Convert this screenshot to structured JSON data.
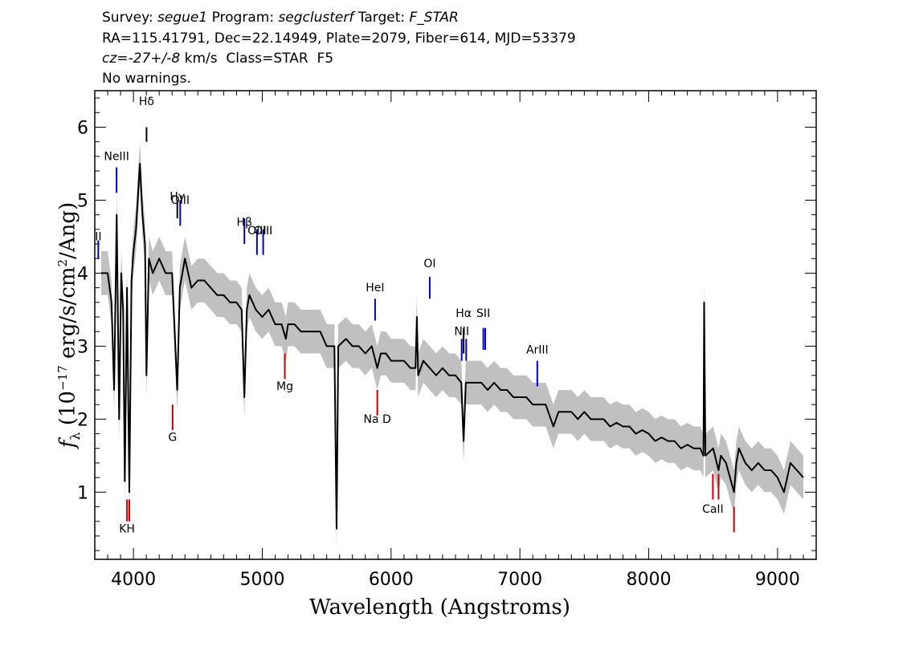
{
  "header": {
    "survey_label": "Survey: ",
    "survey_value": "segue1",
    "program_label": " Program: ",
    "program_value": "segclusterf",
    "target_label": " Target: ",
    "target_value": "F_STAR",
    "line2": "RA=115.41791, Dec=22.14949, Plate=2079, Fiber=614, MJD=53379",
    "cz_prefix": "cz",
    "cz_eq": "=",
    "cz_value": "-27+/-8",
    "cz_suffix": " km/s  Class=STAR  F5",
    "line4": "No warnings."
  },
  "chart_data": {
    "type": "line",
    "title": "",
    "xlabel": "Wavelength (Angstroms)",
    "ylabel_prefix": "f",
    "ylabel_sub": "λ",
    "ylabel_mid": " (10",
    "ylabel_exp": "−17",
    "ylabel_mid2": " erg/s/cm",
    "ylabel_exp2": "2",
    "ylabel_end": "/Ang)",
    "xlim": [
      3700,
      9300
    ],
    "ylim": [
      0.08,
      6.5
    ],
    "x_ticks": [
      4000,
      5000,
      6000,
      7000,
      8000,
      9000
    ],
    "y_ticks": [
      1,
      2,
      3,
      4,
      5,
      6
    ],
    "series": [
      {
        "role": "flux",
        "color": "#000000",
        "points": [
          [
            3750,
            4.0
          ],
          [
            3800,
            4.0
          ],
          [
            3830,
            3.6
          ],
          [
            3850,
            2.4
          ],
          [
            3870,
            4.8
          ],
          [
            3889,
            2.0
          ],
          [
            3905,
            4.0
          ],
          [
            3920,
            3.5
          ],
          [
            3933,
            1.15
          ],
          [
            3950,
            3.8
          ],
          [
            3968,
            1.0
          ],
          [
            3985,
            3.9
          ],
          [
            4000,
            4.3
          ],
          [
            4020,
            4.6
          ],
          [
            4050,
            5.5
          ],
          [
            4070,
            4.8
          ],
          [
            4090,
            4.4
          ],
          [
            4101,
            2.6
          ],
          [
            4120,
            4.2
          ],
          [
            4150,
            4.0
          ],
          [
            4200,
            4.2
          ],
          [
            4250,
            4.0
          ],
          [
            4300,
            4.0
          ],
          [
            4340,
            2.4
          ],
          [
            4360,
            3.8
          ],
          [
            4400,
            4.2
          ],
          [
            4450,
            3.8
          ],
          [
            4500,
            3.9
          ],
          [
            4550,
            3.9
          ],
          [
            4600,
            3.8
          ],
          [
            4650,
            3.7
          ],
          [
            4700,
            3.7
          ],
          [
            4750,
            3.6
          ],
          [
            4800,
            3.6
          ],
          [
            4840,
            3.5
          ],
          [
            4861,
            2.3
          ],
          [
            4880,
            3.5
          ],
          [
            4900,
            3.7
          ],
          [
            4950,
            3.5
          ],
          [
            5000,
            3.4
          ],
          [
            5050,
            3.5
          ],
          [
            5100,
            3.3
          ],
          [
            5150,
            3.3
          ],
          [
            5183,
            3.1
          ],
          [
            5200,
            3.3
          ],
          [
            5250,
            3.3
          ],
          [
            5300,
            3.2
          ],
          [
            5350,
            3.2
          ],
          [
            5400,
            3.2
          ],
          [
            5450,
            3.2
          ],
          [
            5500,
            3.0
          ],
          [
            5560,
            3.0
          ],
          [
            5577,
            0.5
          ],
          [
            5590,
            3.0
          ],
          [
            5650,
            3.1
          ],
          [
            5700,
            3.0
          ],
          [
            5750,
            3.0
          ],
          [
            5800,
            2.9
          ],
          [
            5850,
            3.0
          ],
          [
            5893,
            2.7
          ],
          [
            5920,
            2.9
          ],
          [
            5960,
            2.9
          ],
          [
            6000,
            2.8
          ],
          [
            6050,
            2.8
          ],
          [
            6100,
            2.8
          ],
          [
            6150,
            2.7
          ],
          [
            6190,
            2.7
          ],
          [
            6200,
            3.4
          ],
          [
            6210,
            2.6
          ],
          [
            6250,
            2.8
          ],
          [
            6300,
            2.7
          ],
          [
            6350,
            2.6
          ],
          [
            6400,
            2.7
          ],
          [
            6450,
            2.6
          ],
          [
            6500,
            2.6
          ],
          [
            6545,
            2.5
          ],
          [
            6563,
            1.7
          ],
          [
            6580,
            2.5
          ],
          [
            6620,
            2.5
          ],
          [
            6700,
            2.5
          ],
          [
            6750,
            2.4
          ],
          [
            6800,
            2.5
          ],
          [
            6850,
            2.4
          ],
          [
            6900,
            2.4
          ],
          [
            6950,
            2.3
          ],
          [
            7000,
            2.3
          ],
          [
            7050,
            2.3
          ],
          [
            7100,
            2.2
          ],
          [
            7150,
            2.2
          ],
          [
            7200,
            2.2
          ],
          [
            7260,
            1.9
          ],
          [
            7300,
            2.1
          ],
          [
            7350,
            2.1
          ],
          [
            7400,
            2.1
          ],
          [
            7450,
            2.0
          ],
          [
            7500,
            2.1
          ],
          [
            7550,
            2.0
          ],
          [
            7600,
            2.0
          ],
          [
            7650,
            2.0
          ],
          [
            7700,
            1.9
          ],
          [
            7750,
            1.95
          ],
          [
            7800,
            1.9
          ],
          [
            7850,
            1.9
          ],
          [
            7900,
            1.8
          ],
          [
            7950,
            1.85
          ],
          [
            8000,
            1.8
          ],
          [
            8050,
            1.7
          ],
          [
            8100,
            1.75
          ],
          [
            8150,
            1.7
          ],
          [
            8200,
            1.7
          ],
          [
            8250,
            1.6
          ],
          [
            8300,
            1.65
          ],
          [
            8350,
            1.6
          ],
          [
            8400,
            1.6
          ],
          [
            8425,
            1.5
          ],
          [
            8430,
            3.6
          ],
          [
            8440,
            1.5
          ],
          [
            8500,
            1.6
          ],
          [
            8542,
            1.3
          ],
          [
            8560,
            1.5
          ],
          [
            8600,
            1.4
          ],
          [
            8662,
            1.0
          ],
          [
            8680,
            1.4
          ],
          [
            8700,
            1.6
          ],
          [
            8750,
            1.4
          ],
          [
            8800,
            1.3
          ],
          [
            8850,
            1.4
          ],
          [
            8900,
            1.3
          ],
          [
            8950,
            1.3
          ],
          [
            9000,
            1.2
          ],
          [
            9050,
            1.0
          ],
          [
            9100,
            1.4
          ],
          [
            9150,
            1.3
          ],
          [
            9200,
            1.2
          ]
        ]
      }
    ],
    "line_markers": [
      {
        "label": "Hδ",
        "lambda": 4101.7,
        "kind": "balmer",
        "y_label": 6.3,
        "y_top": 6.0,
        "y_bottom": 5.8,
        "color": "#000000"
      },
      {
        "label": "NeIII",
        "lambda": 3869,
        "kind": "emission",
        "y_label": 5.55,
        "y_top": 5.45,
        "y_bottom": 5.1,
        "color": "#0000cc"
      },
      {
        "label": "Hγ",
        "lambda": 4340.5,
        "kind": "balmer",
        "y_label": 5.0,
        "y_top": 5.0,
        "y_bottom": 4.75,
        "color": "#000000"
      },
      {
        "label": "OIII",
        "lambda": 4363,
        "kind": "emission",
        "y_label": 4.95,
        "y_top": 5.0,
        "y_bottom": 4.65,
        "color": "#0000cc"
      },
      {
        "label": "Hβ",
        "lambda": 4861.3,
        "kind": "emission",
        "y_label": 4.65,
        "y_top": 4.75,
        "y_bottom": 4.4,
        "color": "#0000cc"
      },
      {
        "label": "OIII",
        "lambda": 4959,
        "kind": "emission",
        "y_label": 4.53,
        "y_top": 4.6,
        "y_bottom": 4.25,
        "color": "#0000cc"
      },
      {
        "label": "OIII",
        "lambda": 5007,
        "kind": "emission",
        "y_label": 4.53,
        "y_top": 4.6,
        "y_bottom": 4.25,
        "color": "#0000cc"
      },
      {
        "label": "II",
        "lambda": 3727,
        "kind": "emission",
        "y_label": 4.45,
        "y_top": 4.45,
        "y_bottom": 4.2,
        "color": "#0000cc"
      },
      {
        "label": "HeI",
        "lambda": 5876,
        "kind": "emission",
        "y_label": 3.75,
        "y_top": 3.65,
        "y_bottom": 3.35,
        "color": "#0000cc"
      },
      {
        "label": "OI",
        "lambda": 6300,
        "kind": "emission",
        "y_label": 4.08,
        "y_top": 3.95,
        "y_bottom": 3.65,
        "color": "#0000cc"
      },
      {
        "label": "NII",
        "lambda": 6548,
        "kind": "emission",
        "y_label": 3.15,
        "y_top": 3.1,
        "y_bottom": 2.8,
        "color": "#0000cc"
      },
      {
        "label": "Hα",
        "lambda": 6563,
        "kind": "balmer",
        "y_label": 3.4,
        "y_top": 3.25,
        "y_bottom": 2.9,
        "color": "#000000"
      },
      {
        "label": "Hα",
        "lambda": 6583,
        "kind": "emission",
        "y_label": 3.4,
        "y_top": 3.1,
        "y_bottom": 2.8,
        "color": "#0000cc",
        "show_label": false
      },
      {
        "label": "SII",
        "lambda": 6716,
        "kind": "emission",
        "y_label": 3.4,
        "y_top": 3.25,
        "y_bottom": 2.95,
        "color": "#0000cc"
      },
      {
        "label": "NII",
        "lambda": 6731,
        "kind": "emission",
        "y_label": 3.15,
        "y_top": 3.25,
        "y_bottom": 2.95,
        "color": "#0000cc",
        "show_label": false
      },
      {
        "label": "ArIII",
        "lambda": 7135,
        "kind": "emission",
        "y_label": 2.9,
        "y_top": 2.8,
        "y_bottom": 2.45,
        "color": "#0000cc"
      },
      {
        "label": "KH",
        "lambda": 3950,
        "kind": "absorption",
        "y_label": 0.45,
        "y_top": 0.9,
        "y_bottom": 0.6,
        "color": "#cc0000"
      },
      {
        "label": "",
        "lambda": 3968,
        "kind": "absorption",
        "y_label": 0.45,
        "y_top": 0.9,
        "y_bottom": 0.6,
        "color": "#cc0000"
      },
      {
        "label": "G",
        "lambda": 4304,
        "kind": "absorption",
        "y_label": 1.7,
        "y_top": 2.2,
        "y_bottom": 1.85,
        "color": "#cc0000"
      },
      {
        "label": "Mg",
        "lambda": 5175,
        "kind": "absorption",
        "y_label": 2.4,
        "y_top": 2.9,
        "y_bottom": 2.55,
        "color": "#cc0000"
      },
      {
        "label": "Na D",
        "lambda": 5893,
        "kind": "absorption",
        "y_label": 1.95,
        "y_top": 2.4,
        "y_bottom": 2.05,
        "color": "#cc0000"
      },
      {
        "label": "CaII",
        "lambda": 8498,
        "kind": "absorption",
        "y_label": 0.72,
        "y_top": 1.25,
        "y_bottom": 0.9,
        "color": "#cc0000"
      },
      {
        "label": "",
        "lambda": 8542,
        "kind": "absorption",
        "y_label": 0.72,
        "y_top": 1.25,
        "y_bottom": 0.9,
        "color": "#cc0000"
      },
      {
        "label": "",
        "lambda": 8662,
        "kind": "absorption",
        "y_label": 0.72,
        "y_top": 0.8,
        "y_bottom": 0.45,
        "color": "#cc0000"
      }
    ],
    "grid": false,
    "legend": "none",
    "colors": {
      "flux": "#000000",
      "error_band": "#c0c0c0",
      "emission": "#0000cc",
      "absorption": "#cc0000",
      "balmer": "#000000"
    }
  }
}
